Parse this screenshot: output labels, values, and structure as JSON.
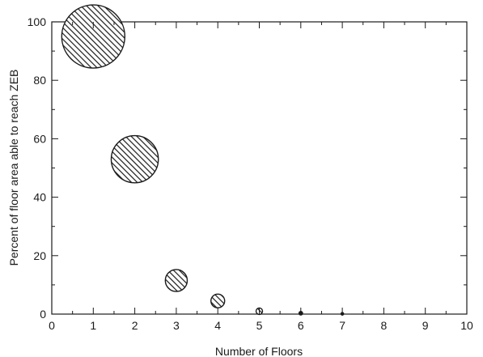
{
  "chart_data": {
    "type": "scatter",
    "xlabel": "Number of Floors",
    "ylabel": "Percent of floor area able to reach ZEB",
    "xlim": [
      0,
      10
    ],
    "ylim": [
      0,
      100
    ],
    "x_ticks": [
      0,
      1,
      2,
      3,
      4,
      5,
      6,
      7,
      8,
      9,
      10
    ],
    "y_ticks": [
      0,
      20,
      40,
      60,
      80,
      100
    ],
    "grid": false,
    "marker": "hatched-circle",
    "size_encodes": "y",
    "series": [
      {
        "points": [
          {
            "x": 1,
            "y": 95
          },
          {
            "x": 2,
            "y": 53
          },
          {
            "x": 3,
            "y": 11.5
          },
          {
            "x": 4,
            "y": 4.5
          },
          {
            "x": 5,
            "y": 1
          },
          {
            "x": 6,
            "y": 0.3
          },
          {
            "x": 7,
            "y": 0.1
          }
        ]
      }
    ]
  }
}
